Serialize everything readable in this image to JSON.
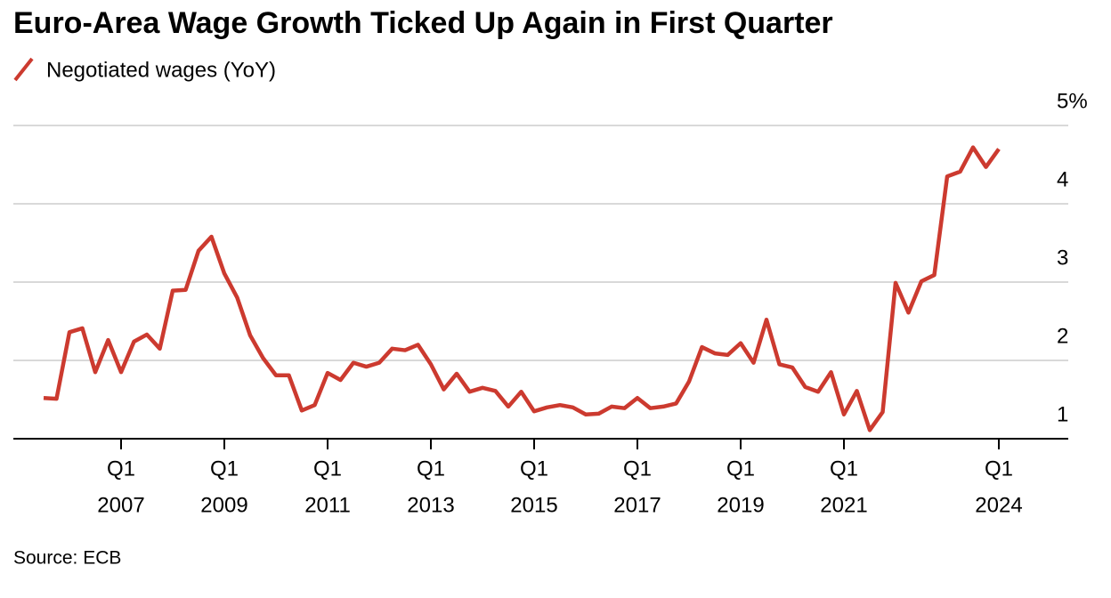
{
  "chart_data": {
    "type": "line",
    "title": "Euro-Area Wage Growth Ticked Up Again in First Quarter",
    "source": "Source: ECB",
    "x": [
      "2005 Q3",
      "2005 Q4",
      "2006 Q1",
      "2006 Q2",
      "2006 Q3",
      "2006 Q4",
      "2007 Q1",
      "2007 Q2",
      "2007 Q3",
      "2007 Q4",
      "2008 Q1",
      "2008 Q2",
      "2008 Q3",
      "2008 Q4",
      "2009 Q1",
      "2009 Q2",
      "2009 Q3",
      "2009 Q4",
      "2010 Q1",
      "2010 Q2",
      "2010 Q3",
      "2010 Q4",
      "2011 Q1",
      "2011 Q2",
      "2011 Q3",
      "2011 Q4",
      "2012 Q1",
      "2012 Q2",
      "2012 Q3",
      "2012 Q4",
      "2013 Q1",
      "2013 Q2",
      "2013 Q3",
      "2013 Q4",
      "2014 Q1",
      "2014 Q2",
      "2014 Q3",
      "2014 Q4",
      "2015 Q1",
      "2015 Q2",
      "2015 Q3",
      "2015 Q4",
      "2016 Q1",
      "2016 Q2",
      "2016 Q3",
      "2016 Q4",
      "2017 Q1",
      "2017 Q2",
      "2017 Q3",
      "2017 Q4",
      "2018 Q1",
      "2018 Q2",
      "2018 Q3",
      "2018 Q4",
      "2019 Q1",
      "2019 Q2",
      "2019 Q3",
      "2019 Q4",
      "2020 Q1",
      "2020 Q2",
      "2020 Q3",
      "2020 Q4",
      "2021 Q1",
      "2021 Q2",
      "2021 Q3",
      "2021 Q4",
      "2022 Q1",
      "2022 Q2",
      "2022 Q3",
      "2022 Q4",
      "2023 Q1",
      "2023 Q2",
      "2023 Q3",
      "2023 Q4",
      "2024 Q1"
    ],
    "series": [
      {
        "name": "Negotiated wages (YoY)",
        "color": "#cc3a2f",
        "values": [
          1.52,
          1.51,
          2.36,
          2.41,
          1.85,
          2.26,
          1.85,
          2.24,
          2.33,
          2.15,
          2.89,
          2.9,
          3.4,
          3.58,
          3.11,
          2.8,
          2.32,
          2.03,
          1.81,
          1.81,
          1.36,
          1.43,
          1.84,
          1.75,
          1.97,
          1.92,
          1.97,
          2.15,
          2.13,
          2.2,
          1.95,
          1.63,
          1.83,
          1.6,
          1.65,
          1.61,
          1.41,
          1.6,
          1.35,
          1.4,
          1.43,
          1.4,
          1.31,
          1.32,
          1.41,
          1.39,
          1.52,
          1.39,
          1.41,
          1.45,
          1.73,
          2.17,
          2.09,
          2.07,
          2.22,
          1.97,
          2.52,
          1.95,
          1.91,
          1.66,
          1.6,
          1.85,
          1.31,
          1.61,
          1.11,
          1.34,
          2.99,
          2.61,
          3.01,
          3.09,
          4.35,
          4.41,
          4.72,
          4.47,
          4.7
        ]
      }
    ],
    "xticks": [
      {
        "value": "2007 Q1",
        "label": [
          "Q1",
          "2007"
        ]
      },
      {
        "value": "2009 Q1",
        "label": [
          "Q1",
          "2009"
        ]
      },
      {
        "value": "2011 Q1",
        "label": [
          "Q1",
          "2011"
        ]
      },
      {
        "value": "2013 Q1",
        "label": [
          "Q1",
          "2013"
        ]
      },
      {
        "value": "2015 Q1",
        "label": [
          "Q1",
          "2015"
        ]
      },
      {
        "value": "2017 Q1",
        "label": [
          "Q1",
          "2017"
        ]
      },
      {
        "value": "2019 Q1",
        "label": [
          "Q1",
          "2019"
        ]
      },
      {
        "value": "2021 Q1",
        "label": [
          "Q1",
          "2021"
        ]
      },
      {
        "value": "2024 Q1",
        "label": [
          "Q1",
          "2024"
        ]
      }
    ],
    "ylim": [
      1,
      5
    ],
    "yticks": [
      1,
      2,
      3,
      4,
      {
        "value": 5,
        "label": "5%"
      }
    ],
    "grid": true
  }
}
